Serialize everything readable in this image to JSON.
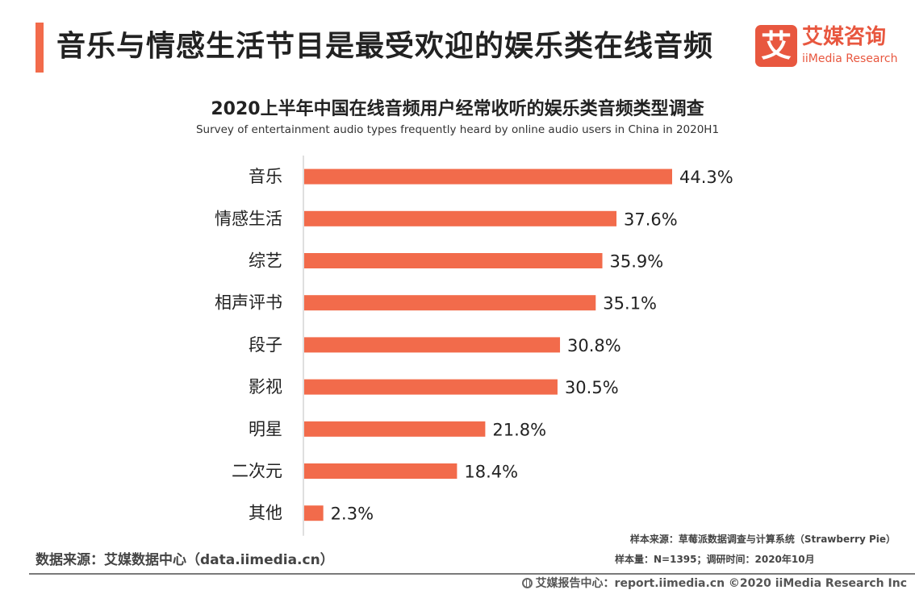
{
  "header": {
    "title": "音乐与情感生活节目是最受欢迎的娱乐类在线音频",
    "accent_color": "#F26B4B"
  },
  "logo": {
    "mark": "艾",
    "name_cn": "艾媒咨询",
    "name_en": "iiMedia Research",
    "color": "#E8573F"
  },
  "chart_data": {
    "type": "bar",
    "orientation": "horizontal",
    "title": "2020上半年中国在线音频用户经常收听的娱乐类音频类型调查",
    "subtitle": "Survey of entertainment audio types frequently heard by online audio users in China in 2020H1",
    "categories": [
      "音乐",
      "情感生活",
      "综艺",
      "相声评书",
      "段子",
      "影视",
      "明星",
      "二次元",
      "其他"
    ],
    "values": [
      44.3,
      37.6,
      35.9,
      35.1,
      30.8,
      30.5,
      21.8,
      18.4,
      2.3
    ],
    "value_labels": [
      "44.3%",
      "37.6%",
      "35.9%",
      "35.1%",
      "30.8%",
      "30.5%",
      "21.8%",
      "18.4%",
      "2.3%"
    ],
    "unit": "%",
    "xlim": [
      0,
      50
    ],
    "grid": false,
    "legend": "none",
    "bar_color": "#F26B4B",
    "axis_color": "#BFBFBF"
  },
  "footnotes": {
    "data_source": "数据来源：艾媒数据中心（data.iimedia.cn）",
    "sample_source": "样本来源：草莓派数据调查与计算系统（Strawberry Pie）",
    "sample_size": "样本量：N=1395；调研时间：2020年10月"
  },
  "footer": {
    "icon": "globe-icon",
    "text": "艾媒报告中心：report.iimedia.cn   ©2020  iiMedia Research  Inc"
  }
}
